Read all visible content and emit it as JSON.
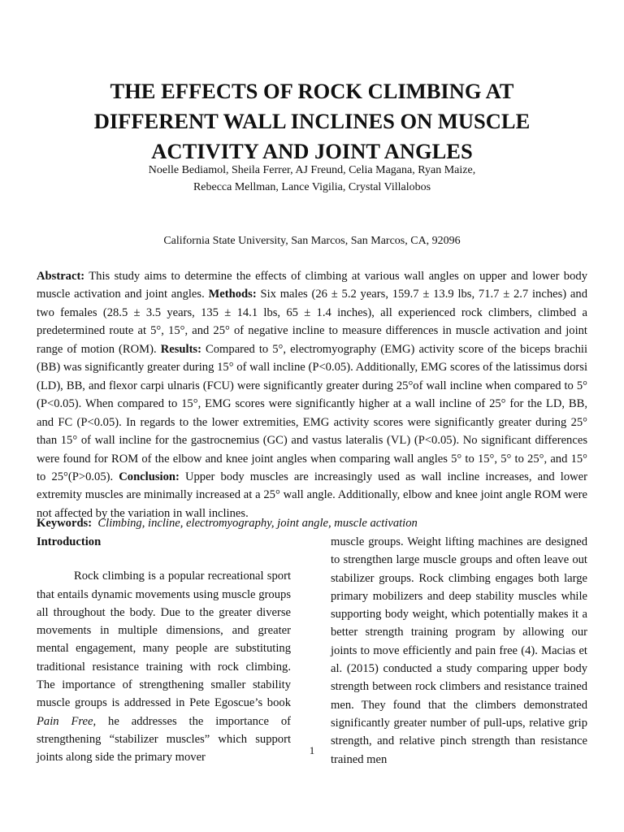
{
  "title_lines": [
    "THE EFFECTS OF ROCK CLIMBING AT",
    "DIFFERENT WALL INCLINES ON MUSCLE",
    "ACTIVITY AND JOINT ANGLES"
  ],
  "authors_lines": [
    "Noelle Bediamol, Sheila Ferrer, AJ Freund, Celia Magana, Ryan Maize,",
    "Rebecca Mellman, Lance Vigilia, Crystal Villalobos"
  ],
  "affiliation": "California State University, San Marcos, San Marcos, CA, 92096",
  "abstract": {
    "label": "Abstract:",
    "intro": " This study aims to determine the effects of climbing at various wall angles on upper and lower body muscle activation and joint angles. ",
    "methods_label": "Methods:",
    "methods": " Six males (26 ± 5.2 years, 159.7 ± 13.9 lbs, 71.7 ± 2.7 inches) and two females (28.5 ± 3.5 years, 135 ± 14.1 lbs, 65 ± 1.4 inches), all experienced rock climbers, climbed a predetermined route at 5°, 15°, and 25° of negative incline to measure differences in muscle activation and joint range of motion (ROM). ",
    "results_label": "Results:",
    "results": " Compared to 5°, electromyography (EMG)  activity score of the biceps brachii (BB) was significantly greater during 15° of wall incline (P<0.05). Additionally,  EMG scores of the latissimus dorsi (LD), BB, and flexor carpi ulnaris (FCU) were significantly greater during 25°of wall incline when compared to 5° (P<0.05). When compared to 15°, EMG scores were significantly higher at a wall incline of 25° for the LD, BB, and FC (P<0.05). In regards to the lower extremities, EMG activity scores were significantly greater during 25° than 15° of wall incline for the gastrocnemius (GC) and vastus lateralis (VL) (P<0.05). No significant differences were found for ROM of the elbow and knee joint angles when comparing wall angles 5° to 15°, 5° to 25°, and 15° to 25°(P>0.05). ",
    "conclusion_label": "Conclusion:",
    "conclusion": " Upper body muscles are increasingly used as wall incline increases, and lower extremity muscles are minimally increased at a 25° wall angle. Additionally, elbow and knee joint angle ROM were not affected by the variation in wall inclines."
  },
  "keywords": {
    "label": "Keywords:",
    "value": "Climbing, incline, electromyography, joint angle, muscle activation"
  },
  "introduction": {
    "heading": "Introduction",
    "left_before": "Rock climbing is a popular recreational sport that entails dynamic movements using muscle groups all throughout the body. Due to the greater diverse movements in multiple dimensions, and greater mental engagement, many people are substituting traditional resistance training with rock climbing. The importance of strengthening smaller stability muscle groups is addressed in Pete Egoscue’s book ",
    "left_italic": "Pain Free,",
    "left_after": " he addresses the importance of strengthening “stabilizer muscles” which support joints along side the primary mover",
    "right": "muscle groups. Weight lifting machines are designed to strengthen large muscle groups and often leave out stabilizer groups. Rock climbing engages both large primary mobilizers and deep stability muscles while supporting body weight, which potentially makes it a better strength training program by allowing our joints to move efficiently and pain free (4). Macias et al. (2015) conducted a study comparing upper body strength between rock climbers and resistance trained men. They found that the climbers demonstrated significantly greater number of pull-ups, relative grip strength, and relative pinch strength than resistance trained men"
  },
  "page_number": "1"
}
